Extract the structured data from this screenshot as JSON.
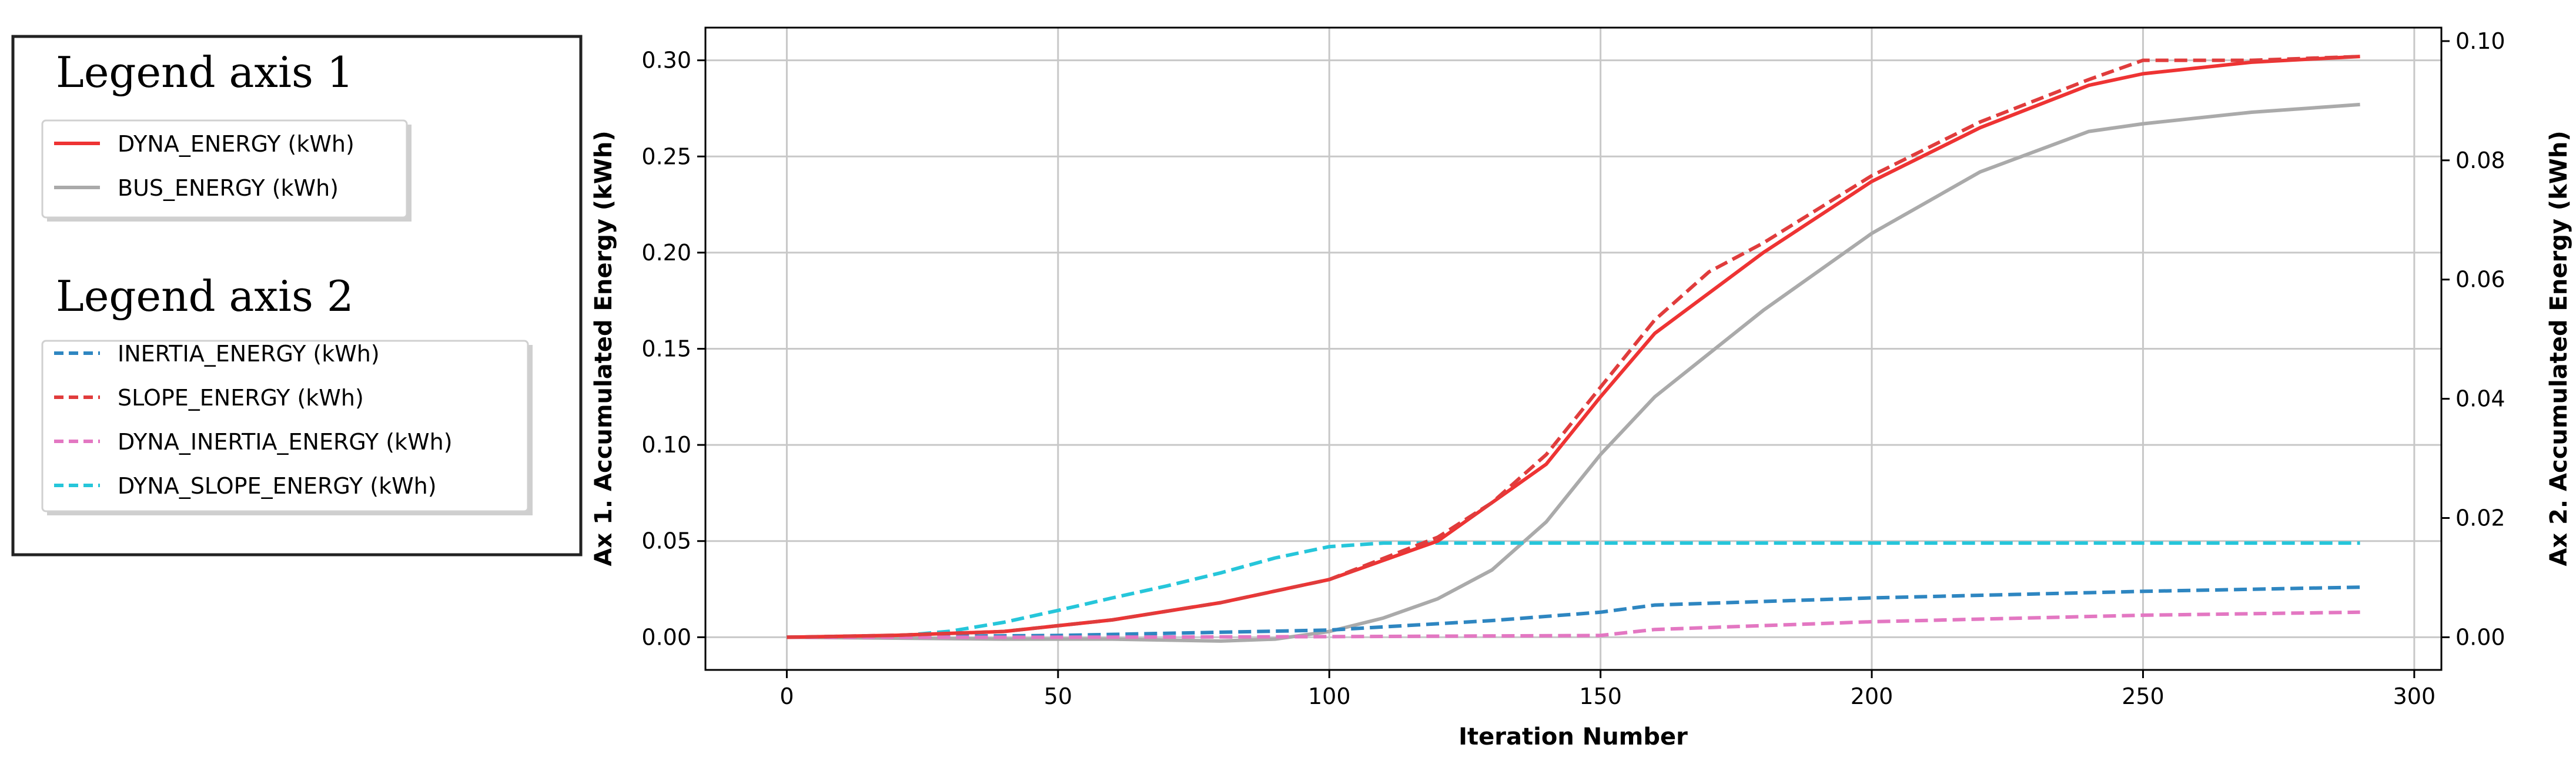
{
  "chart_data": {
    "type": "line",
    "xlabel": "Iteration Number",
    "ylabel_left": "Ax 1. Accumulated Energy (kWh)",
    "ylabel_right": "Ax 2. Accumulated Energy (kWh)",
    "xlim": [
      -15,
      305
    ],
    "ylim_left": [
      -0.017,
      0.317
    ],
    "ylim_right": [
      -0.00548,
      0.10226
    ],
    "x_ticks": [
      0,
      50,
      100,
      150,
      200,
      250,
      300
    ],
    "x_tick_labels": [
      "0",
      "50",
      "100",
      "150",
      "200",
      "250",
      "300"
    ],
    "y_left_ticks": [
      0.0,
      0.05,
      0.1,
      0.15,
      0.2,
      0.25,
      0.3
    ],
    "y_left_tick_labels": [
      "0.00",
      "0.05",
      "0.10",
      "0.15",
      "0.20",
      "0.25",
      "0.30"
    ],
    "y_right_ticks": [
      0.0,
      0.02,
      0.04,
      0.06,
      0.08,
      0.1
    ],
    "y_right_tick_labels": [
      "0.00",
      "0.02",
      "0.04",
      "0.06",
      "0.08",
      "0.10"
    ],
    "grid": true,
    "legend_axis_1_title": "Legend axis 1",
    "legend_axis_2_title": "Legend axis 2",
    "legend_placement": "left, outside plot",
    "series": [
      {
        "name": "DYNA_ENERGY (kWh)",
        "axis": "left",
        "color": "#ee3333",
        "dash": "solid",
        "x": [
          0,
          20,
          40,
          60,
          80,
          100,
          120,
          140,
          150,
          160,
          180,
          200,
          220,
          240,
          250,
          270,
          290
        ],
        "y": [
          0.0,
          0.001,
          0.003,
          0.009,
          0.018,
          0.03,
          0.05,
          0.09,
          0.125,
          0.158,
          0.2,
          0.237,
          0.265,
          0.287,
          0.293,
          0.299,
          0.302
        ]
      },
      {
        "name": "BUS_ENERGY (kWh)",
        "axis": "left",
        "color": "#aaaaaa",
        "dash": "solid",
        "x": [
          0,
          40,
          60,
          80,
          90,
          100,
          110,
          120,
          130,
          140,
          150,
          160,
          180,
          200,
          220,
          240,
          250,
          270,
          290
        ],
        "y": [
          0.0,
          -0.001,
          -0.001,
          -0.002,
          -0.001,
          0.003,
          0.01,
          0.02,
          0.035,
          0.06,
          0.095,
          0.125,
          0.17,
          0.21,
          0.242,
          0.263,
          0.267,
          0.273,
          0.277
        ]
      },
      {
        "name": "INERTIA_ENERGY (kWh)",
        "axis": "right",
        "color": "#2e86c1",
        "dash": "dashed",
        "x": [
          0,
          50,
          100,
          130,
          150,
          160,
          200,
          250,
          290
        ],
        "y": [
          0.0,
          0.0003,
          0.0012,
          0.0028,
          0.0042,
          0.0054,
          0.0066,
          0.0077,
          0.0084
        ]
      },
      {
        "name": "SLOPE_ENERGY (kWh)",
        "axis": "left",
        "color": "#e03c3c",
        "dash": "dashed",
        "x": [
          0,
          20,
          40,
          60,
          80,
          100,
          120,
          130,
          140,
          150,
          160,
          170,
          180,
          200,
          220,
          240,
          250,
          270,
          290
        ],
        "y": [
          0.0,
          0.001,
          0.003,
          0.009,
          0.018,
          0.03,
          0.052,
          0.07,
          0.095,
          0.13,
          0.165,
          0.19,
          0.205,
          0.24,
          0.268,
          0.29,
          0.3,
          0.3,
          0.302
        ]
      },
      {
        "name": "DYNA_INERTIA_ENERGY (kWh)",
        "axis": "right",
        "color": "#e377c2",
        "dash": "dashed",
        "x": [
          0,
          50,
          100,
          150,
          160,
          200,
          250,
          290
        ],
        "y": [
          0.0,
          0.0,
          0.0001,
          0.0003,
          0.0013,
          0.0026,
          0.0037,
          0.0042
        ]
      },
      {
        "name": "DYNA_SLOPE_ENERGY (kWh)",
        "axis": "right",
        "color": "#26c6da",
        "dash": "dashed",
        "x": [
          0,
          20,
          30,
          40,
          50,
          60,
          70,
          80,
          90,
          100,
          110,
          120,
          150,
          200,
          250,
          290
        ],
        "y": [
          0.0,
          0.0002,
          0.001,
          0.0025,
          0.0045,
          0.0066,
          0.0086,
          0.0108,
          0.0133,
          0.0152,
          0.0158,
          0.0158,
          0.0158,
          0.0158,
          0.0158,
          0.0158
        ]
      }
    ]
  }
}
